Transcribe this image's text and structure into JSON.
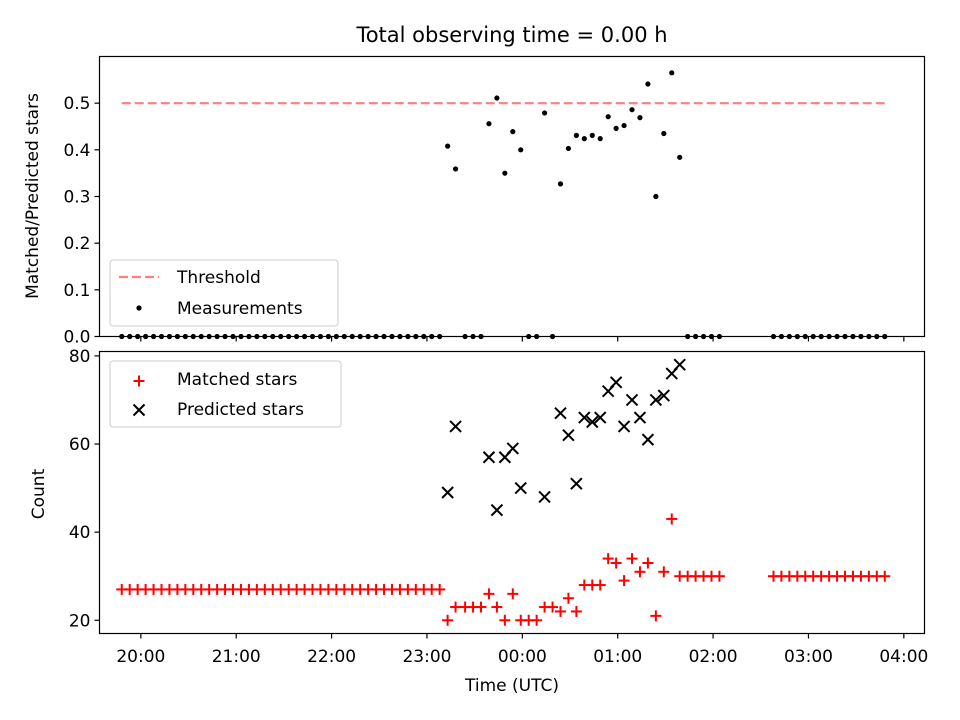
{
  "figure": {
    "title": "Total observing time = 0.00 h"
  },
  "chart_data": [
    {
      "type": "scatter",
      "panel": "top",
      "ylabel": "Matched/Predicted stars",
      "ylim": [
        0,
        0.6
      ],
      "yticks": [
        "0.0",
        "0.1",
        "0.2",
        "0.3",
        "0.4",
        "0.5"
      ],
      "xlim": [
        "19:34",
        "04:13"
      ],
      "grid": false,
      "legend_position": "lower-left",
      "threshold": {
        "name": "Threshold",
        "value": 0.5,
        "x_start": "19:48",
        "x_end": "03:48",
        "color": "#ff7f7f",
        "style": "dashed"
      },
      "series": [
        {
          "name": "Measurements",
          "color": "#000000",
          "marker": "dot",
          "x": [
            "19:48",
            "19:53",
            "19:58",
            "20:03",
            "20:08",
            "20:13",
            "20:18",
            "20:23",
            "20:28",
            "20:33",
            "20:38",
            "20:43",
            "20:48",
            "20:53",
            "20:58",
            "21:03",
            "21:08",
            "21:13",
            "21:18",
            "21:23",
            "21:28",
            "21:33",
            "21:38",
            "21:43",
            "21:48",
            "21:53",
            "21:58",
            "22:03",
            "22:08",
            "22:13",
            "22:18",
            "22:23",
            "22:28",
            "22:33",
            "22:38",
            "22:43",
            "22:48",
            "22:53",
            "22:58",
            "23:03",
            "23:08",
            "23:13",
            "23:18",
            "23:24",
            "23:29",
            "23:34",
            "23:39",
            "23:44",
            "23:49",
            "23:54",
            "23:59",
            "00:04",
            "00:09",
            "00:14",
            "00:19",
            "00:24",
            "00:29",
            "00:34",
            "00:39",
            "00:44",
            "00:49",
            "00:54",
            "00:59",
            "01:04",
            "01:09",
            "01:14",
            "01:19",
            "01:24",
            "01:29",
            "01:34",
            "01:39",
            "01:44",
            "01:49",
            "01:54",
            "01:59",
            "02:04",
            "02:38",
            "02:43",
            "02:48",
            "02:53",
            "02:58",
            "03:03",
            "03:08",
            "03:13",
            "03:18",
            "03:23",
            "03:28",
            "03:33",
            "03:38",
            "03:43",
            "03:48"
          ],
          "y": [
            0,
            0,
            0,
            0,
            0,
            0,
            0,
            0,
            0,
            0,
            0,
            0,
            0,
            0,
            0,
            0,
            0,
            0,
            0,
            0,
            0,
            0,
            0,
            0,
            0,
            0,
            0,
            0,
            0,
            0,
            0,
            0,
            0,
            0,
            0,
            0,
            0,
            0,
            0,
            0,
            0,
            0.408,
            0.359,
            0,
            0,
            0,
            0.456,
            0.511,
            0.35,
            0.439,
            0.4,
            0,
            0,
            0.479,
            0,
            0.327,
            0.403,
            0.431,
            0.424,
            0.431,
            0.424,
            0.471,
            0.446,
            0.452,
            0.486,
            0.469,
            0.541,
            0.3,
            0.435,
            0.565,
            0.384,
            0,
            0,
            0,
            0,
            0,
            0,
            0,
            0,
            0,
            0,
            0,
            0,
            0,
            0,
            0,
            0,
            0,
            0,
            0,
            0
          ]
        }
      ]
    },
    {
      "type": "scatter",
      "panel": "bottom",
      "xlabel": "Time (UTC)",
      "ylabel": "Count",
      "ylim": [
        17,
        81
      ],
      "yticks": [
        "20",
        "40",
        "60",
        "80"
      ],
      "xticks": [
        "20:00",
        "21:00",
        "22:00",
        "23:00",
        "00:00",
        "01:00",
        "02:00",
        "03:00",
        "04:00"
      ],
      "xlim": [
        "19:34",
        "04:13"
      ],
      "grid": false,
      "legend_position": "upper-left",
      "series": [
        {
          "name": "Matched stars",
          "color": "#ff0000",
          "marker": "plus",
          "x": [
            "19:48",
            "19:53",
            "19:58",
            "20:03",
            "20:08",
            "20:13",
            "20:18",
            "20:23",
            "20:28",
            "20:33",
            "20:38",
            "20:43",
            "20:48",
            "20:53",
            "20:58",
            "21:03",
            "21:08",
            "21:13",
            "21:18",
            "21:23",
            "21:28",
            "21:33",
            "21:38",
            "21:43",
            "21:48",
            "21:53",
            "21:58",
            "22:03",
            "22:08",
            "22:13",
            "22:18",
            "22:23",
            "22:28",
            "22:33",
            "22:38",
            "22:43",
            "22:48",
            "22:53",
            "22:58",
            "23:03",
            "23:08",
            "23:13",
            "23:18",
            "23:24",
            "23:29",
            "23:34",
            "23:39",
            "23:44",
            "23:49",
            "23:54",
            "23:59",
            "00:04",
            "00:09",
            "00:14",
            "00:19",
            "00:24",
            "00:29",
            "00:34",
            "00:39",
            "00:44",
            "00:49",
            "00:54",
            "00:59",
            "01:04",
            "01:09",
            "01:14",
            "01:19",
            "01:24",
            "01:29",
            "01:34",
            "01:39",
            "01:44",
            "01:49",
            "01:54",
            "01:59",
            "02:04",
            "02:38",
            "02:43",
            "02:48",
            "02:53",
            "02:58",
            "03:03",
            "03:08",
            "03:13",
            "03:18",
            "03:23",
            "03:28",
            "03:33",
            "03:38",
            "03:43",
            "03:48"
          ],
          "y": [
            27,
            27,
            27,
            27,
            27,
            27,
            27,
            27,
            27,
            27,
            27,
            27,
            27,
            27,
            27,
            27,
            27,
            27,
            27,
            27,
            27,
            27,
            27,
            27,
            27,
            27,
            27,
            27,
            27,
            27,
            27,
            27,
            27,
            27,
            27,
            27,
            27,
            27,
            27,
            27,
            27,
            20,
            23,
            23,
            23,
            23,
            26,
            23,
            20,
            26,
            20,
            20,
            20,
            23,
            23,
            22,
            25,
            22,
            28,
            28,
            28,
            34,
            33,
            29,
            34,
            31,
            33,
            21,
            31,
            43,
            30,
            30,
            30,
            30,
            30,
            30,
            30,
            30,
            30,
            30,
            30,
            30,
            30,
            30,
            30,
            30,
            30,
            30,
            30,
            30,
            30
          ]
        },
        {
          "name": "Predicted stars",
          "color": "#000000",
          "marker": "x",
          "x": [
            "23:13",
            "23:18",
            "23:39",
            "23:44",
            "23:49",
            "23:54",
            "23:59",
            "00:14",
            "00:24",
            "00:29",
            "00:34",
            "00:39",
            "00:44",
            "00:49",
            "00:54",
            "00:59",
            "01:04",
            "01:09",
            "01:14",
            "01:19",
            "01:24",
            "01:29",
            "01:34",
            "01:39",
            "01:44"
          ],
          "y": [
            49,
            64,
            57,
            45,
            57,
            59,
            50,
            48,
            67,
            62,
            51,
            66,
            65,
            66,
            72,
            74,
            64,
            70,
            66,
            61,
            70,
            71,
            76,
            78,
            null
          ]
        }
      ]
    }
  ]
}
